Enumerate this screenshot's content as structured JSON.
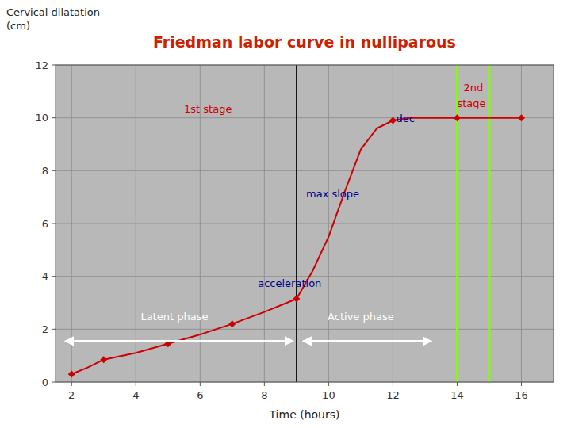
{
  "chart_data": {
    "type": "line",
    "title": "Friedman labor curve in nulliparous",
    "title_color": "#cc2200",
    "xlabel": "Time (hours)",
    "ylabel": [
      "Cervical dilatation",
      "(cm)"
    ],
    "bg_color": "#b8b8b8",
    "grid": true,
    "grid_color": "#888888",
    "xlim": [
      1.5,
      17
    ],
    "ylim": [
      0,
      12
    ],
    "xticks": [
      2,
      4,
      6,
      8,
      10,
      12,
      14,
      16
    ],
    "yticks": [
      0,
      2,
      4,
      6,
      8,
      10,
      12
    ],
    "series": [
      {
        "type": "line",
        "color": "#cc0000",
        "x": [
          2,
          2.5,
          3,
          4,
          5,
          6,
          7,
          8,
          9,
          9.5,
          10,
          10.5,
          11,
          11.5,
          12,
          12.5,
          13,
          14,
          15,
          16
        ],
        "values": [
          0.3,
          0.55,
          0.85,
          1.1,
          1.45,
          1.8,
          2.2,
          2.65,
          3.15,
          4.2,
          5.5,
          7.2,
          8.8,
          9.6,
          9.9,
          10.0,
          10.0,
          10.0,
          10.0,
          10.0
        ]
      },
      {
        "type": "scatter",
        "color": "#cc0000",
        "marker": "diamond",
        "x": [
          2,
          3,
          5,
          7,
          9,
          12,
          14,
          16
        ],
        "values": [
          0.3,
          0.85,
          1.45,
          2.2,
          3.15,
          9.9,
          10.0,
          10.0
        ]
      }
    ],
    "vlines": [
      {
        "x": 14,
        "color": "#80ff00"
      },
      {
        "x": 15,
        "color": "#80ff00"
      },
      {
        "x": 9,
        "color": "#000000"
      }
    ],
    "annotations": [
      {
        "text": "1st stage",
        "x": 5.5,
        "y": 10.2,
        "color": "#cc0000"
      },
      {
        "text": "2nd",
        "x": 14.2,
        "y": 11.0,
        "color": "#cc0000"
      },
      {
        "text": "stage",
        "x": 14.0,
        "y": 10.4,
        "color": "#cc0000"
      },
      {
        "text": "dec",
        "x": 12.1,
        "y": 9.85,
        "color": "#00008b"
      },
      {
        "text": "max slope",
        "x": 9.3,
        "y": 7.0,
        "color": "#00008b"
      },
      {
        "text": "acceleration",
        "x": 7.8,
        "y": 3.6,
        "color": "#00008b"
      },
      {
        "text": "Latent phase",
        "x": 5.2,
        "y": 2.35,
        "color": "#ffffff",
        "align": "center"
      },
      {
        "text": "Active phase",
        "x": 11.0,
        "y": 2.35,
        "color": "#ffffff",
        "align": "center"
      }
    ],
    "arrows": [
      {
        "x1": 1.8,
        "x2": 8.9,
        "y": 1.55,
        "color": "#ffffff"
      },
      {
        "x1": 9.2,
        "x2": 13.2,
        "y": 1.55,
        "color": "#ffffff"
      }
    ]
  }
}
